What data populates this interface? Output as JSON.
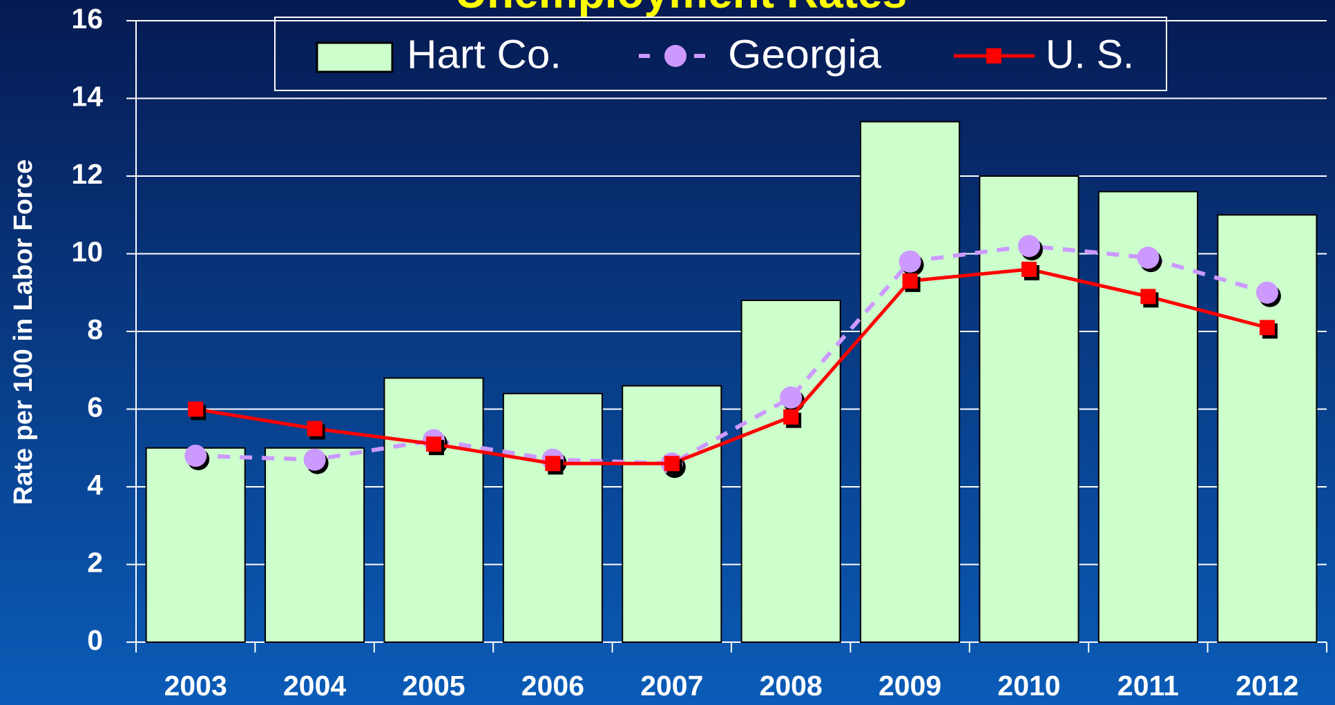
{
  "chart_data": {
    "type": "bar_line",
    "title": "Unemployment Rates",
    "y_label": "Rate per 100 in Labor Force",
    "categories": [
      "2003",
      "2004",
      "2005",
      "2006",
      "2007",
      "2008",
      "2009",
      "2010",
      "2011",
      "2012"
    ],
    "series": [
      {
        "name": "Hart Co.",
        "type": "bar",
        "color": "#ccffcc",
        "values": [
          5.0,
          5.0,
          6.8,
          6.4,
          6.6,
          8.8,
          13.4,
          12.0,
          11.6,
          11.0
        ]
      },
      {
        "name": "Georgia",
        "type": "line",
        "color": "#cc99ff",
        "dashed": true,
        "marker": "circle",
        "values": [
          4.8,
          4.7,
          5.2,
          4.7,
          4.6,
          6.3,
          9.8,
          10.2,
          9.9,
          9.0
        ]
      },
      {
        "name": "U. S.",
        "type": "line",
        "color": "#ff0000",
        "dashed": false,
        "marker": "square",
        "values": [
          6.0,
          5.5,
          5.1,
          4.6,
          4.6,
          5.8,
          9.3,
          9.6,
          8.9,
          8.1
        ]
      }
    ],
    "ylim": [
      0,
      16
    ],
    "yticks": [
      0,
      2,
      4,
      6,
      8,
      10,
      12,
      14,
      16
    ],
    "grid": true,
    "legend": "top"
  }
}
